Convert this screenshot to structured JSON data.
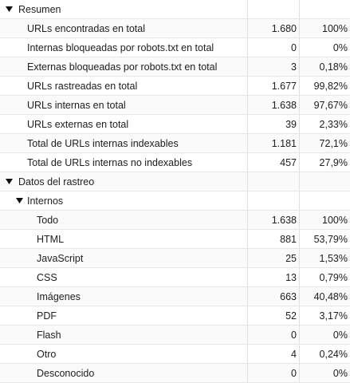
{
  "resumen": {
    "label": "Resumen",
    "rows": [
      {
        "label": "URLs encontradas en total",
        "value": "1.680",
        "pct": "100%"
      },
      {
        "label": "Internas bloqueadas por robots.txt en total",
        "value": "0",
        "pct": "0%"
      },
      {
        "label": "Externas bloqueadas por robots.txt en total",
        "value": "3",
        "pct": "0,18%"
      },
      {
        "label": "URLs rastreadas en total",
        "value": "1.677",
        "pct": "99,82%"
      },
      {
        "label": "URLs internas en total",
        "value": "1.638",
        "pct": "97,67%"
      },
      {
        "label": "URLs externas en total",
        "value": "39",
        "pct": "2,33%"
      },
      {
        "label": "Total de URLs internas indexables",
        "value": "1.181",
        "pct": "72,1%"
      },
      {
        "label": "Total de URLs internas no indexables",
        "value": "457",
        "pct": "27,9%"
      }
    ]
  },
  "datos": {
    "label": "Datos del rastreo",
    "internos": {
      "label": "Internos",
      "rows": [
        {
          "label": "Todo",
          "value": "1.638",
          "pct": "100%"
        },
        {
          "label": "HTML",
          "value": "881",
          "pct": "53,79%"
        },
        {
          "label": "JavaScript",
          "value": "25",
          "pct": "1,53%"
        },
        {
          "label": "CSS",
          "value": "13",
          "pct": "0,79%"
        },
        {
          "label": "Imágenes",
          "value": "663",
          "pct": "40,48%"
        },
        {
          "label": "PDF",
          "value": "52",
          "pct": "3,17%"
        },
        {
          "label": "Flash",
          "value": "0",
          "pct": "0%"
        },
        {
          "label": "Otro",
          "value": "4",
          "pct": "0,24%"
        },
        {
          "label": "Desconocido",
          "value": "0",
          "pct": "0%"
        }
      ]
    }
  }
}
